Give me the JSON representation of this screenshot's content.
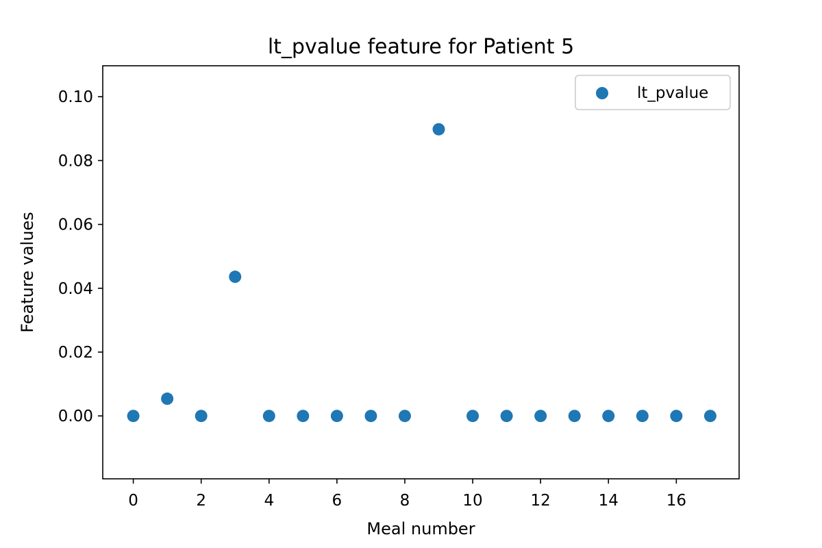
{
  "chart_data": {
    "type": "scatter",
    "title": "lt_pvalue feature for Patient 5",
    "xlabel": "Meal number",
    "ylabel": "Feature values",
    "xlim": [
      -0.9,
      17.85
    ],
    "ylim": [
      -0.0197,
      0.1097
    ],
    "xticks": [
      0,
      2,
      4,
      6,
      8,
      10,
      12,
      14,
      16
    ],
    "xtick_labels": [
      "0",
      "2",
      "4",
      "6",
      "8",
      "10",
      "12",
      "14",
      "16"
    ],
    "yticks": [
      0.0,
      0.02,
      0.04,
      0.06,
      0.08,
      0.1
    ],
    "ytick_labels": [
      "0.00",
      "0.02",
      "0.04",
      "0.06",
      "0.08",
      "0.10"
    ],
    "grid": false,
    "legend_position": "top-right",
    "series": [
      {
        "name": "lt_pvalue",
        "color": "#1f77b4",
        "x": [
          0,
          1,
          2,
          3,
          4,
          5,
          6,
          7,
          8,
          9,
          10,
          11,
          12,
          13,
          14,
          15,
          16,
          17
        ],
        "y": [
          0.0,
          0.0054,
          0.0,
          0.0436,
          0.0,
          0.0,
          0.0,
          0.0,
          0.0,
          0.0898,
          0.0,
          0.0,
          0.0,
          0.0,
          0.0,
          0.0,
          0.0,
          0.0
        ]
      }
    ]
  }
}
